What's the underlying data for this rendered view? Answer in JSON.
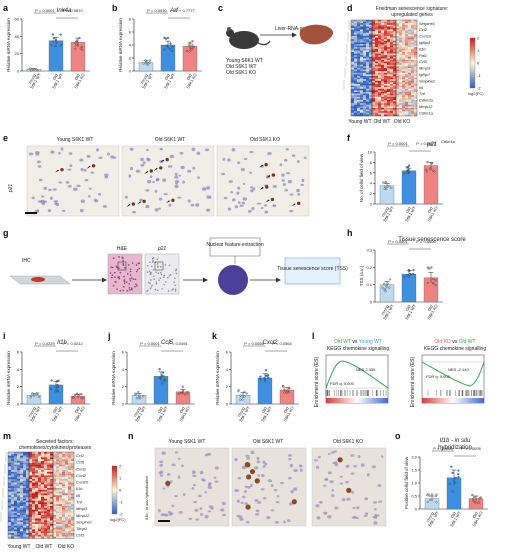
{
  "colors": {
    "young": "#bcd9f2",
    "old": "#3f8fe0",
    "ko": "#f08282",
    "young_text": "#3aa0d8",
    "old_text": "#2fa84f",
    "ko_text": "#e25c5c",
    "tss_box": "#e3f1fb",
    "tile_bg": "#f1eee8"
  },
  "icons": [
    "mouse-icon",
    "liver-icon",
    "slide-icon",
    "nucleus-icon"
  ],
  "groups": {
    "young": [
      "Young",
      "S6K1 WT"
    ],
    "old": [
      "Old",
      "S6K1 WT"
    ],
    "ko": [
      "Old",
      "S6K1 KO"
    ]
  },
  "panels": {
    "a": {
      "letter": "a",
      "gene": "Ink4a",
      "ylabel": "Relative mRNA expression",
      "p1": "P = 0.0001",
      "p2": "P = 0.9870",
      "ticks": [
        "0",
        "20",
        "40",
        "60"
      ]
    },
    "b": {
      "letter": "b",
      "gene": "Arf",
      "ylabel": "Relative mRNA expression",
      "p1": "P = 0.0030",
      "p2": "P = 0.7777",
      "ticks": [
        "0",
        "2",
        "4",
        "6",
        "8"
      ]
    },
    "c": {
      "letter": "c",
      "arrow_label": "Liver-RNA-seq",
      "groups": [
        "Young S6K1 WT",
        "Old S6K1 WT",
        "Old S6K1 KO"
      ]
    },
    "d": {
      "letter": "d",
      "title": "Friedman senescence signature:",
      "subtitle": "upregulated genes",
      "genes": [
        "Serpine1",
        "Ccl2",
        "Cxcl10",
        "Igfbp3",
        "Il1b",
        "Pai1",
        "Ccl5",
        "Mmp3",
        "Igfbp7",
        "Serpine2",
        "Il6",
        "Tnf",
        "Cdkn2a",
        "Mmp12",
        "Cdkn1a"
      ],
      "legend_unit": "log2(FC)",
      "legend_ticks": [
        "2",
        "1",
        "0",
        "-1",
        "-2"
      ],
      "col_labels": [
        "Young WT",
        "Old WT",
        "Old KO"
      ]
    },
    "e": {
      "letter": "e",
      "ylabel": "p21",
      "tiles": [
        "Young S6K1 WT",
        "Old S6K1 WT",
        "Old S6K1 KO"
      ]
    },
    "f": {
      "letter": "f",
      "gene": "p21",
      "gene_sup": "Cdkn1a",
      "ylabel": "No. of cells/ field of view",
      "p1": "P = 0.0001",
      "p2": "P = 0.0607",
      "ticks": [
        "0",
        "2",
        "4",
        "6",
        "8",
        "10"
      ]
    },
    "g": {
      "letter": "g",
      "ihc": "IHC",
      "he": "H&E",
      "p21": "p21",
      "feature": "Nuclear feature extraction",
      "tss": "Tissue senescence score (TSS)"
    },
    "h": {
      "letter": "h",
      "title": "Tissue senescence score",
      "ylabel": "TSS (a.u.)",
      "p1": "P = 0.0401",
      "p2": "P = 0.4606",
      "ticks": [
        "0",
        "0.1",
        "0.2",
        "0.3"
      ]
    },
    "i": {
      "letter": "i",
      "gene": "Il1b",
      "ylabel": "Relative mRNA expression",
      "p1": "P = 0.0229",
      "p2": "P = 0.0212",
      "ticks": [
        "0",
        "2",
        "4",
        "6"
      ]
    },
    "j": {
      "letter": "j",
      "gene": "Ccl5",
      "ylabel": "Relative mRNA expression",
      "p1": "P = 0.0001",
      "p2": "P = 0.0491",
      "ticks": [
        "0",
        "2",
        "4",
        "6"
      ]
    },
    "k": {
      "letter": "k",
      "gene": "Cxcl2",
      "ylabel": "Relative mRNA expression",
      "p1": "P = 0.0056",
      "p2": "P = 0.0564",
      "ticks": [
        "0",
        "2",
        "4",
        "6"
      ]
    },
    "l": {
      "letter": "l",
      "left": {
        "a": "Old WT",
        "vs": " vs ",
        "b": "Young WT",
        "title": "KEGG chemokine signalling",
        "nes": "NES 2.355",
        "fdr": "FDR q: 0.000"
      },
      "right": {
        "a": "Old KO",
        "vs": " vs ",
        "b": "Old WT",
        "title": "KEGG chemokine signalling",
        "nes": "NES -2.140",
        "fdr": "FDR q: 0.000"
      },
      "ylabel": "Enrichment score (ES)"
    },
    "m": {
      "letter": "m",
      "title": "Secreted factors:",
      "subtitle": "chemokines/cytokines/proteases",
      "genes": [
        "Ccl2",
        "Ccl5",
        "Cxcl1",
        "Cxcl2",
        "Cxcl10",
        "Il1b",
        "Il6",
        "Tnf",
        "Mmp3",
        "Mmp12",
        "Serpine1",
        "Timp1",
        "Csf1"
      ],
      "legend_unit": "log2(FC)",
      "legend_ticks": [
        "2",
        "1",
        "0",
        "-1",
        "-2"
      ],
      "col_labels": [
        "Young WT",
        "Old WT",
        "Old KO"
      ]
    },
    "n": {
      "letter": "n",
      "ylabel": "Il1b - in situ hybridization",
      "tiles": [
        "Young S6K1 WT",
        "Old S6K1 WT",
        "Old S6K1 KO"
      ]
    },
    "o": {
      "letter": "o",
      "title": "Il1b - in situ",
      "title2": "hybridization",
      "ylabel": "Positive cells/ field of view",
      "p1": "P = 0.0285",
      "p2": "P = 0.0005",
      "ticks": [
        "0",
        "0.5",
        "1.0",
        "1.5",
        "2.0"
      ]
    }
  },
  "chart_data": [
    {
      "id": "a",
      "type": "bar",
      "categories": [
        "Young S6K1 WT",
        "Old S6K1 WT",
        "Old S6K1 KO"
      ],
      "values": [
        2,
        35,
        33
      ],
      "errors": [
        1,
        4,
        5
      ],
      "ylim": [
        0,
        60
      ],
      "ylabel": "Relative mRNA expression",
      "title": "Ink4a"
    },
    {
      "id": "b",
      "type": "bar",
      "categories": [
        "Young S6K1 WT",
        "Old S6K1 WT",
        "Old S6K1 KO"
      ],
      "values": [
        1.3,
        4.0,
        3.8
      ],
      "errors": [
        0.3,
        0.6,
        0.5
      ],
      "ylim": [
        0,
        8
      ],
      "ylabel": "Relative mRNA expression",
      "title": "Arf"
    },
    {
      "id": "f",
      "type": "bar",
      "categories": [
        "Young S6K1 WT",
        "Old S6K1 WT",
        "Old S6K1 KO"
      ],
      "values": [
        3.5,
        6.4,
        7.4
      ],
      "errors": [
        0.4,
        0.5,
        0.6
      ],
      "ylim": [
        0,
        10
      ],
      "ylabel": "No. of cells/ field of view",
      "title": "p21"
    },
    {
      "id": "h",
      "type": "bar",
      "categories": [
        "Young S6K1 WT",
        "Old S6K1 WT",
        "Old S6K1 KO"
      ],
      "values": [
        0.1,
        0.16,
        0.14
      ],
      "errors": [
        0.02,
        0.02,
        0.03
      ],
      "ylim": [
        0,
        0.3
      ],
      "ylabel": "TSS (a.u.)",
      "title": "Tissue senescence score"
    },
    {
      "id": "i",
      "type": "bar",
      "categories": [
        "Young S6K1 WT",
        "Old S6K1 WT",
        "Old S6K1 KO"
      ],
      "values": [
        1.0,
        2.2,
        0.9
      ],
      "errors": [
        0.2,
        0.4,
        0.2
      ],
      "ylim": [
        0,
        6
      ],
      "ylabel": "Relative mRNA expression",
      "title": "Il1b"
    },
    {
      "id": "j",
      "type": "bar",
      "categories": [
        "Young S6K1 WT",
        "Old S6K1 WT",
        "Old S6K1 KO"
      ],
      "values": [
        1.0,
        3.2,
        1.4
      ],
      "errors": [
        0.2,
        0.5,
        0.3
      ],
      "ylim": [
        0,
        6
      ],
      "ylabel": "Relative mRNA expression",
      "title": "Ccl5"
    },
    {
      "id": "k",
      "type": "bar",
      "categories": [
        "Young S6K1 WT",
        "Old S6K1 WT",
        "Old S6K1 KO"
      ],
      "values": [
        1.0,
        3.0,
        1.6
      ],
      "errors": [
        0.3,
        0.5,
        0.3
      ],
      "ylim": [
        0,
        6
      ],
      "ylabel": "Relative mRNA expression",
      "title": "Cxcl2"
    },
    {
      "id": "o",
      "type": "bar",
      "categories": [
        "Young S6K1 WT",
        "Old S6K1 WT",
        "Old S6K1 KO"
      ],
      "values": [
        0.4,
        1.2,
        0.4
      ],
      "errors": [
        0.1,
        0.3,
        0.1
      ],
      "ylim": [
        0,
        2.0
      ],
      "ylabel": "Positive cells/ field of view",
      "title": "Il1b - in situ hybridization"
    }
  ]
}
